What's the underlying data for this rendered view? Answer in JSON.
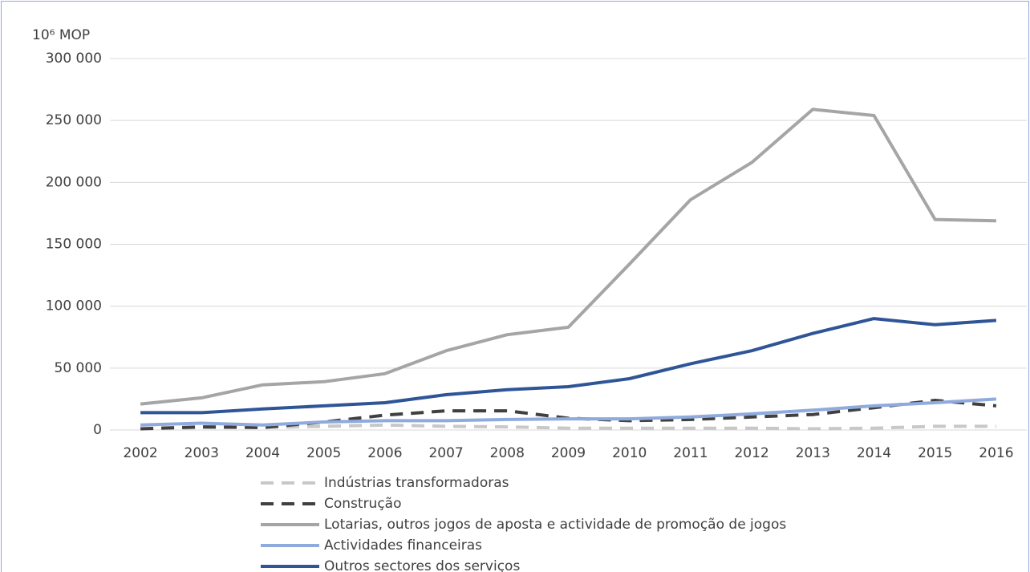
{
  "chart_data": {
    "type": "line",
    "y_axis_label": "10⁶ MOP",
    "categories": [
      "2002",
      "2003",
      "2004",
      "2005",
      "2006",
      "2007",
      "2008",
      "2009",
      "2010",
      "2011",
      "2012",
      "2013",
      "2014",
      "2015",
      "2016"
    ],
    "ylim": [
      0,
      300000
    ],
    "yticks": [
      0,
      {
        "value": 50000,
        "label": "50 000"
      },
      {
        "value": 100000,
        "label": "100 000"
      },
      {
        "value": 150000,
        "label": "150 000"
      },
      {
        "value": 200000,
        "label": "200 000"
      },
      {
        "value": 250000,
        "label": "250 000"
      },
      {
        "value": 300000,
        "label": "300 000"
      }
    ],
    "grid": true,
    "legend": "bottom",
    "series": [
      {
        "name": "Indústrias transformadoras",
        "color": "#c8c8c8",
        "dashed": true,
        "values": [
          1000,
          2000,
          2000,
          3000,
          4000,
          3000,
          2500,
          1500,
          1500,
          1500,
          1500,
          1000,
          1500,
          3000,
          3000
        ]
      },
      {
        "name": "Construção",
        "color": "#404040",
        "dashed": true,
        "values": [
          1000,
          2500,
          2000,
          6500,
          12000,
          15500,
          15500,
          9500,
          7500,
          8500,
          10500,
          12500,
          18000,
          24000,
          19500
        ]
      },
      {
        "name": "Lotarias, outros jogos de aposta e actividade de promoção de jogos",
        "color": "#a5a5a5",
        "dashed": false,
        "values": [
          21000,
          26000,
          36500,
          39000,
          45500,
          64000,
          77000,
          83000,
          134000,
          186000,
          216000,
          259000,
          254000,
          170000,
          169000
        ]
      },
      {
        "name": "Actividades financeiras",
        "color": "#8faadc",
        "dashed": false,
        "values": [
          4000,
          5500,
          4000,
          6500,
          7500,
          7500,
          8500,
          9000,
          9000,
          10500,
          13000,
          16000,
          19500,
          22000,
          25000
        ]
      },
      {
        "name": "Outros sectores dos serviços",
        "color": "#2f5597",
        "dashed": false,
        "values": [
          14000,
          14000,
          17000,
          19500,
          22000,
          28500,
          32500,
          35000,
          41500,
          53500,
          64000,
          78000,
          90000,
          85000,
          88500
        ]
      }
    ]
  }
}
